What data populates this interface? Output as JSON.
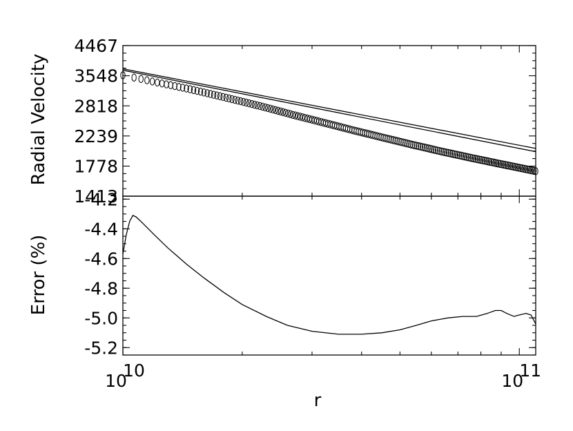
{
  "chart_data": [
    {
      "type": "scatter",
      "panel": "top",
      "xscale": "log",
      "yscale": "log",
      "xlim": [
        10000000000.0,
        110000000000.0
      ],
      "ylim": [
        1413,
        4467
      ],
      "ylabel": "Radial Velocity",
      "yticks": [
        {
          "value": 1413,
          "label": "1413"
        },
        {
          "value": 1778,
          "label": "1778"
        },
        {
          "value": 2239,
          "label": "2239"
        },
        {
          "value": 2818,
          "label": "2818"
        },
        {
          "value": 3548,
          "label": "3548"
        },
        {
          "value": 4467,
          "label": "4467"
        }
      ],
      "series": [
        {
          "style": "circles",
          "x": [
            10000000000.0,
            11000000000.0,
            12000000000.0,
            13500000000.0,
            15000000000.0,
            17000000000.0,
            20000000000.0,
            23000000000.0,
            27000000000.0,
            32000000000.0,
            38000000000.0,
            45000000000.0,
            54000000000.0,
            64000000000.0,
            76000000000.0,
            90000000000.0,
            110000000000.0
          ],
          "y": [
            3560,
            3470,
            3385,
            3280,
            3185,
            3065,
            2910,
            2780,
            2625,
            2480,
            2340,
            2215,
            2090,
            1985,
            1890,
            1805,
            1710
          ]
        },
        {
          "style": "line",
          "x": [
            10000000000.0,
            110000000000.0
          ],
          "y": [
            3740,
            2035
          ]
        },
        {
          "style": "line",
          "x": [
            10000000000.0,
            110000000000.0
          ],
          "y": [
            3700,
            1985
          ]
        }
      ]
    },
    {
      "type": "line",
      "panel": "bottom",
      "xscale": "log",
      "xlim": [
        10000000000.0,
        110000000000.0
      ],
      "ylim": [
        -5.25,
        -4.18
      ],
      "xlabel": "r",
      "ylabel": "Error (%)",
      "xticks": [
        {
          "value": 10000000000.0,
          "base": "10",
          "exp": "10"
        },
        {
          "value": 100000000000.0,
          "base": "10",
          "exp": "11"
        }
      ],
      "yticks": [
        {
          "value": -5.2,
          "label": "-5.2"
        },
        {
          "value": -5.0,
          "label": "-5.0"
        },
        {
          "value": -4.8,
          "label": "-4.8"
        },
        {
          "value": -4.6,
          "label": "-4.6"
        },
        {
          "value": -4.4,
          "label": "-4.4"
        },
        {
          "value": -4.2,
          "label": "-4.2"
        }
      ],
      "series": [
        {
          "x": [
            10000000000.0,
            10200000000.0,
            10400000000.0,
            10600000000.0,
            10800000000.0,
            11200000000.0,
            12000000000.0,
            13000000000.0,
            14500000000.0,
            16000000000.0,
            18000000000.0,
            20000000000.0,
            23000000000.0,
            26000000000.0,
            30000000000.0,
            35000000000.0,
            40000000000.0,
            45000000000.0,
            50000000000.0,
            55000000000.0,
            60000000000.0,
            66000000000.0,
            72000000000.0,
            78000000000.0,
            83000000000.0,
            87000000000.0,
            90000000000.0,
            93000000000.0,
            97000000000.0,
            100000000000.0,
            104000000000.0,
            107000000000.0,
            110000000000.0
          ],
          "y": [
            -4.57,
            -4.44,
            -4.35,
            -4.31,
            -4.32,
            -4.36,
            -4.44,
            -4.53,
            -4.64,
            -4.73,
            -4.83,
            -4.91,
            -4.99,
            -5.05,
            -5.09,
            -5.11,
            -5.11,
            -5.1,
            -5.08,
            -5.05,
            -5.02,
            -5.0,
            -4.99,
            -4.99,
            -4.97,
            -4.95,
            -4.95,
            -4.97,
            -4.99,
            -4.98,
            -4.97,
            -4.98,
            -5.04
          ]
        }
      ]
    }
  ]
}
